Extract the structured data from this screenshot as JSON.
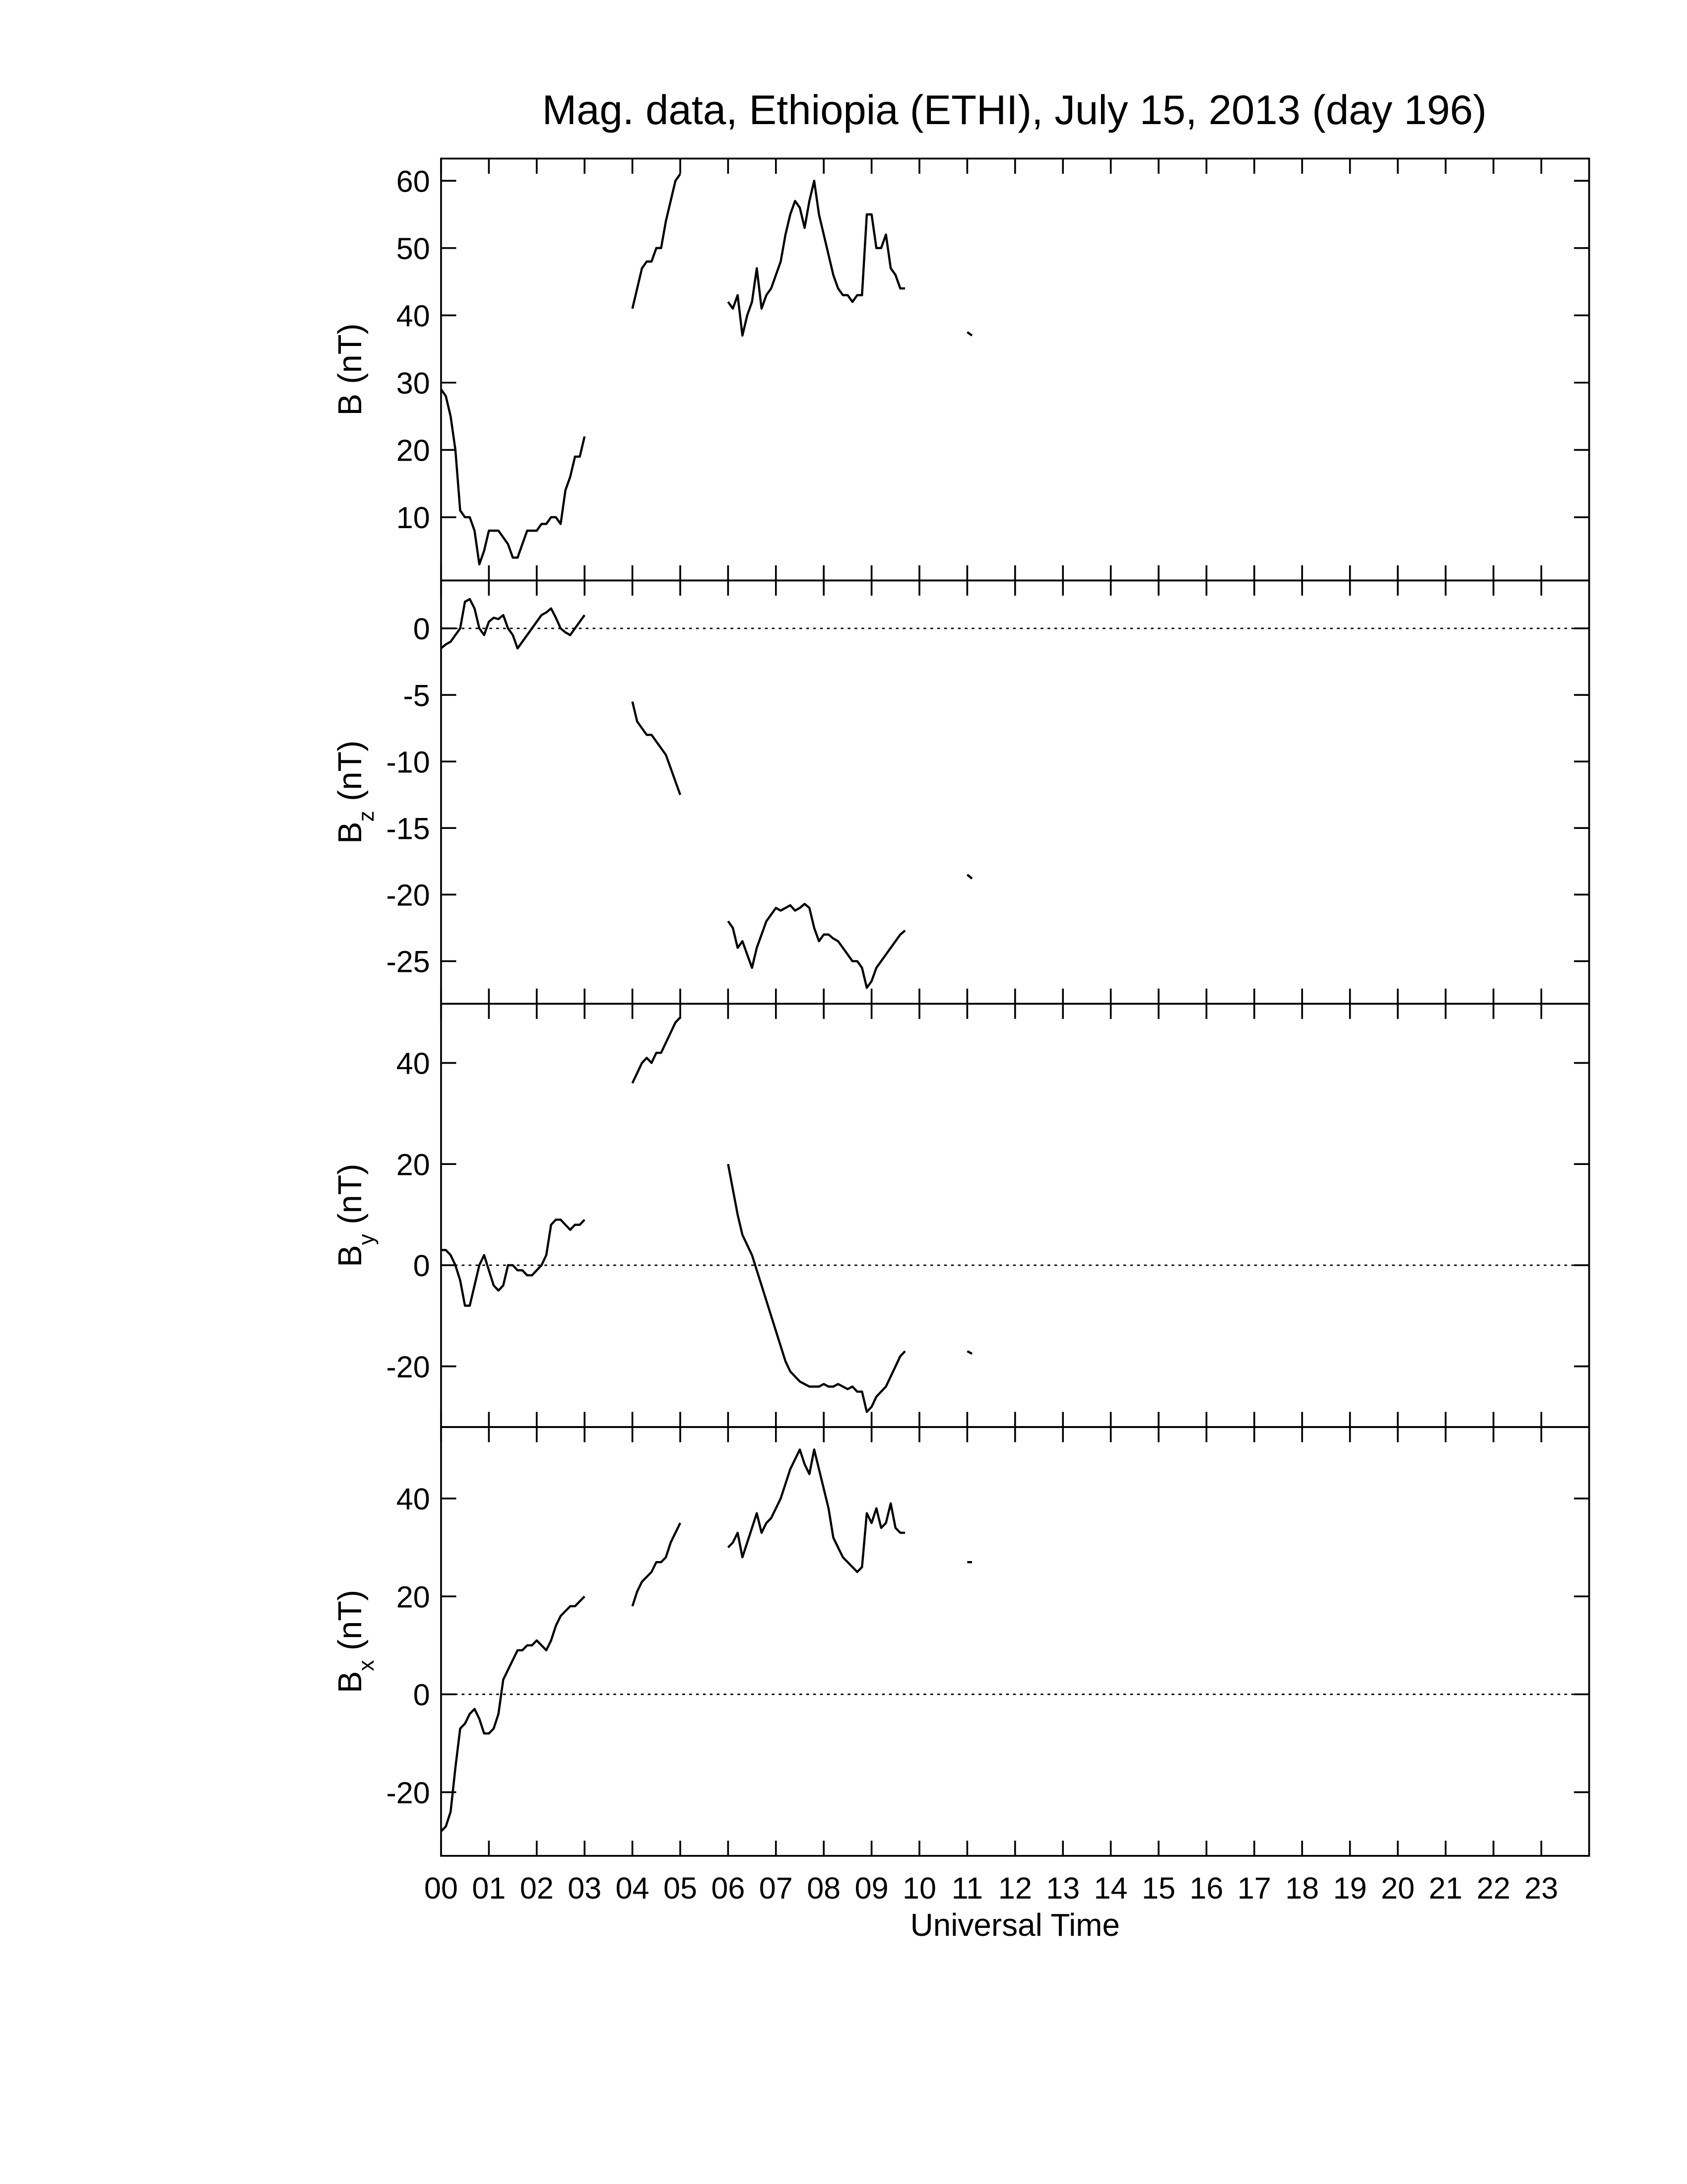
{
  "chart_data": [
    {
      "type": "line",
      "title": "Mag. data, Ethiopia (ETHI), July 15, 2013 (day 196)",
      "ylabel": "B",
      "ylabel_unit": "(nT)",
      "color": "#000000",
      "xlim": [
        0,
        24
      ],
      "ylim": [
        0.6,
        63.3
      ],
      "yticks": [
        10,
        20,
        30,
        40,
        50,
        60
      ],
      "zero_line": false,
      "x": [
        0,
        0.1,
        0.2,
        0.3,
        0.4,
        0.5,
        0.6,
        0.7,
        0.8,
        0.9,
        1,
        1.1,
        1.2,
        1.3,
        1.4,
        1.5,
        1.6,
        1.7,
        1.8,
        1.9,
        2,
        2.1,
        2.2,
        2.3,
        2.4,
        2.5,
        2.6,
        2.7,
        2.8,
        2.9,
        3,
        3.5,
        4,
        4.1,
        4.2,
        4.3,
        4.4,
        4.5,
        4.6,
        4.7,
        4.8,
        4.9,
        5,
        5.5,
        6,
        6.1,
        6.2,
        6.3,
        6.4,
        6.5,
        6.6,
        6.7,
        6.8,
        6.9,
        7,
        7.1,
        7.2,
        7.3,
        7.4,
        7.5,
        7.6,
        7.7,
        7.8,
        7.9,
        8,
        8.1,
        8.2,
        8.3,
        8.4,
        8.5,
        8.6,
        8.7,
        8.8,
        8.9,
        9,
        9.1,
        9.2,
        9.3,
        9.4,
        9.5,
        9.6,
        9.7,
        10.5,
        11,
        11.1
      ],
      "values": [
        29,
        28,
        25,
        20,
        11,
        10,
        10,
        8,
        3,
        5,
        8,
        8,
        8,
        7,
        6,
        4,
        4,
        6,
        8,
        8,
        8,
        9,
        9,
        10,
        10,
        9,
        14,
        16,
        19,
        19,
        22,
        null,
        41,
        44,
        47,
        48,
        48,
        50,
        50,
        54,
        57,
        60,
        61,
        null,
        42,
        41,
        43,
        37,
        40,
        42,
        47,
        41,
        43,
        44,
        46,
        48,
        52,
        55,
        57,
        56,
        53,
        57,
        60,
        55,
        52,
        49,
        46,
        44,
        43,
        43,
        42,
        43,
        43,
        55,
        55,
        50,
        50,
        52,
        47,
        46,
        44,
        44,
        null,
        37.5,
        37
      ]
    },
    {
      "type": "line",
      "ylabel": "B",
      "ylabel_sub": "z",
      "ylabel_unit": "(nT)",
      "color": "#000000",
      "xlim": [
        0,
        24
      ],
      "ylim": [
        -28.2,
        3.6
      ],
      "yticks": [
        -25,
        -20,
        -15,
        -10,
        -5,
        0
      ],
      "zero_line": true,
      "x": [
        0,
        0.1,
        0.2,
        0.3,
        0.4,
        0.5,
        0.6,
        0.7,
        0.8,
        0.9,
        1,
        1.1,
        1.2,
        1.3,
        1.4,
        1.5,
        1.6,
        1.7,
        1.8,
        1.9,
        2,
        2.1,
        2.2,
        2.3,
        2.4,
        2.5,
        2.6,
        2.7,
        2.8,
        2.9,
        3,
        3.5,
        4,
        4.1,
        4.2,
        4.3,
        4.4,
        4.5,
        4.6,
        4.7,
        4.8,
        4.9,
        5,
        5.5,
        6,
        6.1,
        6.2,
        6.3,
        6.4,
        6.5,
        6.6,
        6.7,
        6.8,
        6.9,
        7,
        7.1,
        7.2,
        7.3,
        7.4,
        7.5,
        7.6,
        7.7,
        7.8,
        7.9,
        8,
        8.1,
        8.2,
        8.3,
        8.4,
        8.5,
        8.6,
        8.7,
        8.8,
        8.9,
        9,
        9.1,
        9.2,
        9.3,
        9.4,
        9.5,
        9.6,
        9.7,
        10.5,
        11,
        11.1
      ],
      "values": [
        -1.5,
        -1.2,
        -1,
        -0.5,
        0,
        2,
        2.2,
        1.5,
        0,
        -0.5,
        0.5,
        0.8,
        0.7,
        1,
        0,
        -0.5,
        -1.5,
        -1,
        -0.5,
        0,
        0.5,
        1,
        1.2,
        1.5,
        0.8,
        0,
        -0.3,
        -0.5,
        0,
        0.5,
        1,
        null,
        -5.5,
        -7,
        -7.5,
        -8,
        -8,
        -8.5,
        -9,
        -9.5,
        -10.5,
        -11.5,
        -12.5,
        null,
        -22,
        -22.5,
        -24,
        -23.5,
        -24.5,
        -25.5,
        -24,
        -23,
        -22,
        -21.5,
        -21,
        -21.2,
        -21,
        -20.8,
        -21.2,
        -21,
        -20.7,
        -21,
        -22.5,
        -23.5,
        -23,
        -23,
        -23.3,
        -23.5,
        -24,
        -24.5,
        -25,
        -25,
        -25.5,
        -27,
        -26.5,
        -25.5,
        -25,
        -24.5,
        -24,
        -23.5,
        -23,
        -22.7,
        null,
        -18.5,
        -18.8
      ]
    },
    {
      "type": "line",
      "ylabel": "B",
      "ylabel_sub": "y",
      "ylabel_unit": "(nT)",
      "color": "#000000",
      "xlim": [
        0,
        24
      ],
      "ylim": [
        -32,
        51.7
      ],
      "yticks": [
        -20,
        0,
        20,
        40
      ],
      "zero_line": true,
      "x": [
        0,
        0.1,
        0.2,
        0.3,
        0.4,
        0.5,
        0.6,
        0.7,
        0.8,
        0.9,
        1,
        1.1,
        1.2,
        1.3,
        1.4,
        1.5,
        1.6,
        1.7,
        1.8,
        1.9,
        2,
        2.1,
        2.2,
        2.3,
        2.4,
        2.5,
        2.6,
        2.7,
        2.8,
        2.9,
        3,
        3.5,
        4,
        4.1,
        4.2,
        4.3,
        4.4,
        4.5,
        4.6,
        4.7,
        4.8,
        4.9,
        5,
        5.5,
        6,
        6.1,
        6.2,
        6.3,
        6.4,
        6.5,
        6.6,
        6.7,
        6.8,
        6.9,
        7,
        7.1,
        7.2,
        7.3,
        7.4,
        7.5,
        7.6,
        7.7,
        7.8,
        7.9,
        8,
        8.1,
        8.2,
        8.3,
        8.4,
        8.5,
        8.6,
        8.7,
        8.8,
        8.9,
        9,
        9.1,
        9.2,
        9.3,
        9.4,
        9.5,
        9.6,
        9.7,
        10.5,
        11,
        11.1
      ],
      "values": [
        3,
        3,
        2,
        0,
        -3,
        -8,
        -8,
        -4,
        0,
        2,
        -1,
        -4,
        -5,
        -4,
        0,
        0,
        -1,
        -1,
        -2,
        -2,
        -1,
        0,
        2,
        8,
        9,
        9,
        8,
        7,
        8,
        8,
        9,
        null,
        36,
        38,
        40,
        41,
        40,
        42,
        42,
        44,
        46,
        48,
        49,
        null,
        20,
        15,
        10,
        6,
        4,
        2,
        -1,
        -4,
        -7,
        -10,
        -13,
        -16,
        -19,
        -21,
        -22,
        -23,
        -23.5,
        -24,
        -24,
        -24,
        -23.5,
        -24,
        -24,
        -23.5,
        -24,
        -24.5,
        -24,
        -25,
        -25,
        -29,
        -28,
        -26,
        -25,
        -24,
        -22,
        -20,
        -18,
        -17,
        null,
        -17,
        -17.5
      ]
    },
    {
      "type": "line",
      "ylabel": "B",
      "ylabel_sub": "x",
      "ylabel_unit": "(nT)",
      "xlabel": "Universal Time",
      "color": "#000000",
      "xlim": [
        0,
        24
      ],
      "ylim": [
        -33,
        54.6
      ],
      "yticks": [
        -20,
        0,
        20,
        40
      ],
      "zero_line": true,
      "xticks": [
        {
          "value": 0,
          "label": "00"
        },
        {
          "value": 1,
          "label": "01"
        },
        {
          "value": 2,
          "label": "02"
        },
        {
          "value": 3,
          "label": "03"
        },
        {
          "value": 4,
          "label": "04"
        },
        {
          "value": 5,
          "label": "05"
        },
        {
          "value": 6,
          "label": "06"
        },
        {
          "value": 7,
          "label": "07"
        },
        {
          "value": 8,
          "label": "08"
        },
        {
          "value": 9,
          "label": "09"
        },
        {
          "value": 10,
          "label": "10"
        },
        {
          "value": 11,
          "label": "11"
        },
        {
          "value": 12,
          "label": "12"
        },
        {
          "value": 13,
          "label": "13"
        },
        {
          "value": 14,
          "label": "14"
        },
        {
          "value": 15,
          "label": "15"
        },
        {
          "value": 16,
          "label": "16"
        },
        {
          "value": 17,
          "label": "17"
        },
        {
          "value": 18,
          "label": "18"
        },
        {
          "value": 19,
          "label": "19"
        },
        {
          "value": 20,
          "label": "20"
        },
        {
          "value": 21,
          "label": "21"
        },
        {
          "value": 22,
          "label": "22"
        },
        {
          "value": 23,
          "label": "23"
        }
      ],
      "x": [
        0,
        0.1,
        0.2,
        0.3,
        0.4,
        0.5,
        0.6,
        0.7,
        0.8,
        0.9,
        1,
        1.1,
        1.2,
        1.3,
        1.4,
        1.5,
        1.6,
        1.7,
        1.8,
        1.9,
        2,
        2.1,
        2.2,
        2.3,
        2.4,
        2.5,
        2.6,
        2.7,
        2.8,
        2.9,
        3,
        3.5,
        4,
        4.1,
        4.2,
        4.3,
        4.4,
        4.5,
        4.6,
        4.7,
        4.8,
        4.9,
        5,
        5.5,
        6,
        6.1,
        6.2,
        6.3,
        6.4,
        6.5,
        6.6,
        6.7,
        6.8,
        6.9,
        7,
        7.1,
        7.2,
        7.3,
        7.4,
        7.5,
        7.6,
        7.7,
        7.8,
        7.9,
        8,
        8.1,
        8.2,
        8.3,
        8.4,
        8.5,
        8.6,
        8.7,
        8.8,
        8.9,
        9,
        9.1,
        9.2,
        9.3,
        9.4,
        9.5,
        9.6,
        9.7,
        10.5,
        11,
        11.1
      ],
      "values": [
        -28,
        -27,
        -24,
        -15,
        -7,
        -6,
        -4,
        -3,
        -5,
        -8,
        -8,
        -7,
        -4,
        3,
        5,
        7,
        9,
        9,
        10,
        10,
        11,
        10,
        9,
        11,
        14,
        16,
        17,
        18,
        18,
        19,
        20,
        null,
        18,
        21,
        23,
        24,
        25,
        27,
        27,
        28,
        31,
        33,
        35,
        null,
        30,
        31,
        33,
        28,
        31,
        34,
        37,
        33,
        35,
        36,
        38,
        40,
        43,
        46,
        48,
        50,
        47,
        45,
        50,
        46,
        42,
        38,
        32,
        30,
        28,
        27,
        26,
        25,
        26,
        37,
        35,
        38,
        34,
        35,
        39,
        34,
        33,
        33,
        null,
        27,
        27
      ]
    }
  ]
}
